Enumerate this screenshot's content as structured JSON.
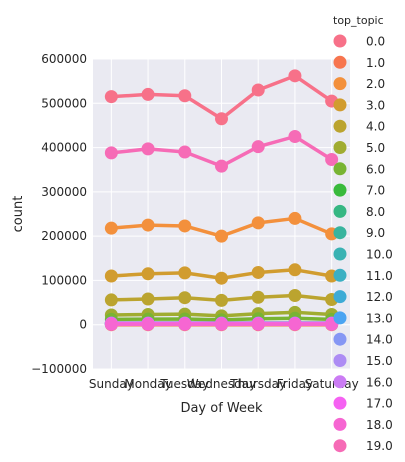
{
  "chart_data": {
    "type": "line",
    "xlabel": "Day of Week",
    "ylabel": "count",
    "categories": [
      "Sunday",
      "Monday",
      "Tuesday",
      "Wednesday",
      "Thursday",
      "Friday",
      "Saturday"
    ],
    "ylim": [
      -100000,
      600000
    ],
    "yticks": [
      -100000,
      0,
      100000,
      200000,
      300000,
      400000,
      500000,
      600000
    ],
    "ytick_labels": [
      "−100000",
      "0",
      "100000",
      "200000",
      "300000",
      "400000",
      "500000",
      "600000"
    ],
    "grid": true,
    "background": "#EAEAF2",
    "legend": {
      "title": "top_topic",
      "placement": "right outside",
      "entries": [
        "0.0",
        "1.0",
        "2.0",
        "3.0",
        "4.0",
        "5.0",
        "6.0",
        "7.0",
        "8.0",
        "9.0",
        "10.0",
        "11.0",
        "12.0",
        "13.0",
        "14.0",
        "15.0",
        "16.0",
        "17.0",
        "18.0",
        "19.0"
      ]
    },
    "series": [
      {
        "name": "0.0",
        "color": "#F77189",
        "values": [
          515000,
          520000,
          517000,
          465000,
          530000,
          562000,
          505000
        ]
      },
      {
        "name": "1.0",
        "color": "#F7754F",
        "values": [
          0,
          0,
          0,
          0,
          0,
          0,
          0
        ]
      },
      {
        "name": "2.0",
        "color": "#F3903C",
        "values": [
          218000,
          225000,
          223000,
          200000,
          230000,
          240000,
          205000
        ]
      },
      {
        "name": "3.0",
        "color": "#D19C2F",
        "values": [
          110000,
          115000,
          117000,
          105000,
          118000,
          124000,
          110000
        ]
      },
      {
        "name": "4.0",
        "color": "#BBA42F",
        "values": [
          56000,
          58000,
          61000,
          55000,
          62000,
          66000,
          57000
        ]
      },
      {
        "name": "5.0",
        "color": "#A0AC31",
        "values": [
          22000,
          23000,
          24000,
          20000,
          25000,
          28000,
          23000
        ]
      },
      {
        "name": "6.0",
        "color": "#78B433",
        "values": [
          12000,
          12500,
          13000,
          11000,
          13500,
          14500,
          12000
        ]
      },
      {
        "name": "7.0",
        "color": "#39BA3C",
        "values": [
          2000,
          2000,
          2000,
          2000,
          2000,
          2000,
          2000
        ]
      },
      {
        "name": "8.0",
        "color": "#36B783",
        "values": [
          3000,
          3000,
          3000,
          3000,
          3000,
          3000,
          3000
        ]
      },
      {
        "name": "9.0",
        "color": "#38B49E",
        "values": [
          4000,
          4000,
          4000,
          4000,
          4000,
          4000,
          4000
        ]
      },
      {
        "name": "10.0",
        "color": "#39B2B3",
        "values": [
          2000,
          2000,
          2000,
          2000,
          2000,
          2000,
          2000
        ]
      },
      {
        "name": "11.0",
        "color": "#3BAFC3",
        "values": [
          1500,
          1500,
          1500,
          1500,
          1500,
          1500,
          1500
        ]
      },
      {
        "name": "12.0",
        "color": "#3DABD6",
        "values": [
          2500,
          2500,
          2500,
          2500,
          2500,
          2500,
          2500
        ]
      },
      {
        "name": "13.0",
        "color": "#4BA4F2",
        "values": [
          1800,
          1800,
          1800,
          1800,
          1800,
          1800,
          1800
        ]
      },
      {
        "name": "14.0",
        "color": "#8697F4",
        "values": [
          2200,
          2200,
          2200,
          2200,
          2200,
          2200,
          2200
        ]
      },
      {
        "name": "15.0",
        "color": "#AD8CF4",
        "values": [
          1200,
          1200,
          1200,
          1200,
          1200,
          1200,
          1200
        ]
      },
      {
        "name": "16.0",
        "color": "#CB7CF4",
        "values": [
          3500,
          3500,
          3500,
          3500,
          3500,
          3500,
          3500
        ]
      },
      {
        "name": "17.0",
        "color": "#F562F2",
        "values": [
          2500,
          2500,
          2500,
          2500,
          2500,
          2500,
          2500
        ]
      },
      {
        "name": "18.0",
        "color": "#F666D2",
        "values": [
          1000,
          1000,
          1000,
          1000,
          1000,
          1000,
          1000
        ]
      },
      {
        "name": "19.0",
        "color": "#F66BB6",
        "values": [
          388000,
          397000,
          390000,
          358000,
          402000,
          425000,
          373000
        ]
      }
    ]
  }
}
